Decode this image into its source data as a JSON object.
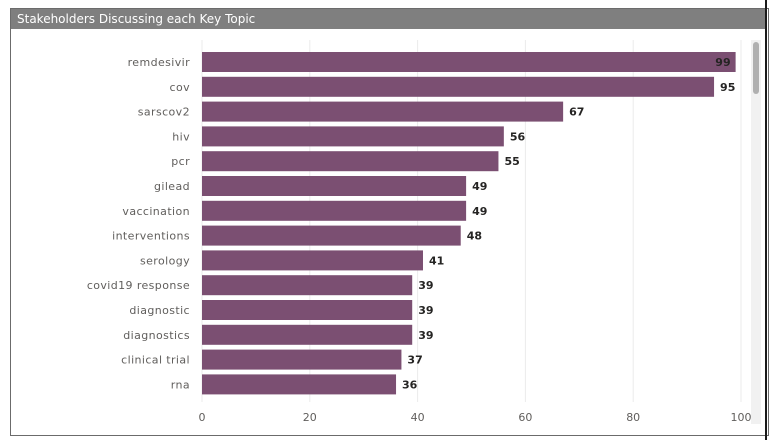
{
  "header": {
    "title": "Stakeholders Discussing each Key Topic"
  },
  "colors": {
    "bar": "#7b4f72",
    "header": "#7f7f7f",
    "grid": "#ebebeb"
  },
  "chart_data": {
    "type": "bar",
    "orientation": "horizontal",
    "title": "Stakeholders Discussing each Key Topic",
    "categories": [
      "remdesivir",
      "cov",
      "sarscov2",
      "hiv",
      "pcr",
      "gilead",
      "vaccination",
      "interventions",
      "serology",
      "covid19 response",
      "diagnostic",
      "diagnostics",
      "clinical trial",
      "rna"
    ],
    "values": [
      99,
      95,
      67,
      56,
      55,
      49,
      49,
      48,
      41,
      39,
      39,
      39,
      37,
      36
    ],
    "xlim": [
      0,
      100
    ],
    "xticks": [
      0,
      20,
      40,
      60,
      80,
      100
    ],
    "grid": true,
    "legend": "none"
  }
}
